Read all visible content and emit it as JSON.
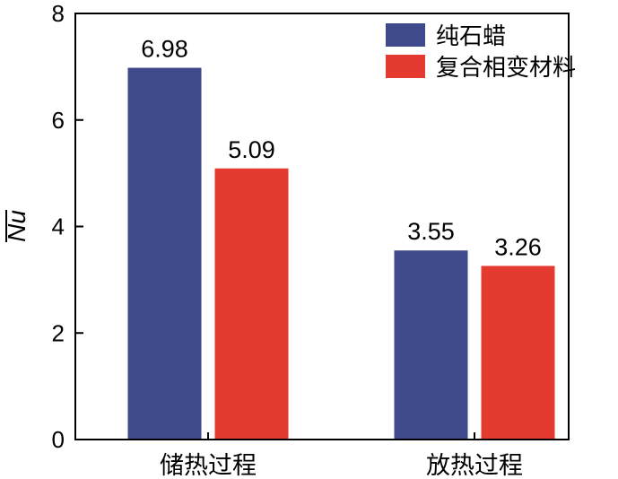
{
  "chart_data": {
    "type": "bar",
    "categories": [
      "储热过程",
      "放热过程"
    ],
    "series": [
      {
        "name": "纯石蜡",
        "values": [
          6.98,
          3.55
        ],
        "color": "#3e4a8c"
      },
      {
        "name": "复合相变材料",
        "values": [
          5.09,
          3.26
        ],
        "color": "#e53a2f"
      }
    ],
    "data_labels": [
      [
        "6.98",
        "3.55"
      ],
      [
        "5.09",
        "3.26"
      ]
    ],
    "ylabel": "Nu",
    "ylabel_overline": true,
    "ylim": [
      0,
      8
    ],
    "yticks": [
      0,
      2,
      4,
      6,
      8
    ],
    "ytick_labels": [
      "0",
      "2",
      "4",
      "6",
      "8"
    ],
    "grid": false,
    "legend_position": "top-right"
  }
}
